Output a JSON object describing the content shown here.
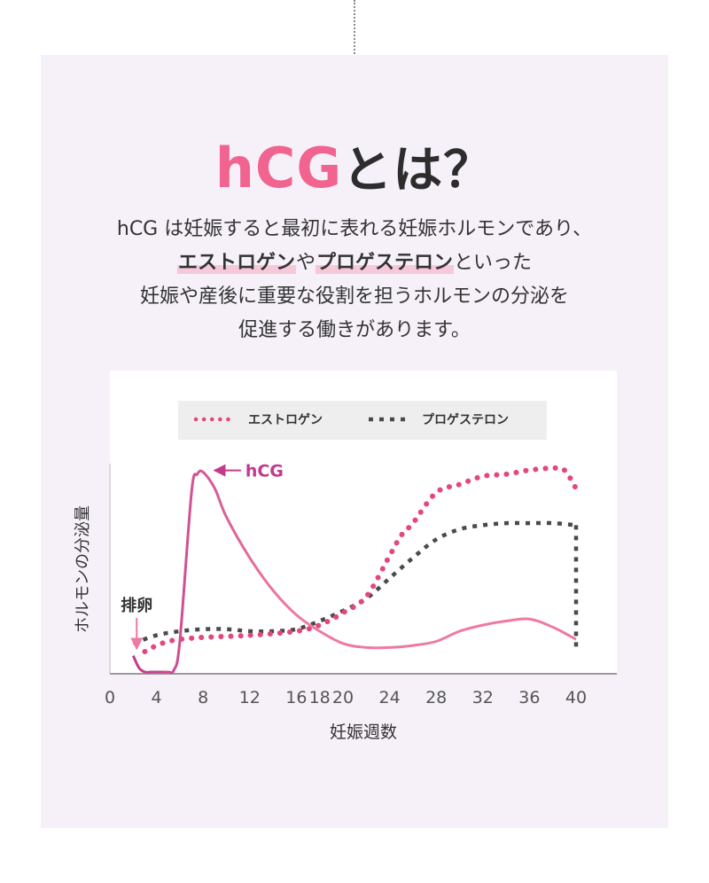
{
  "heading": {
    "accent": "hCG",
    "rest": "とは？"
  },
  "intro": {
    "line1": "hCG は妊娠すると最初に表れる妊娠ホルモンであり、",
    "line2_highlight1": "エストロゲン",
    "line2_mid": "や",
    "line2_highlight2": "プロゲステロン",
    "line2_end": "といった",
    "line3": "妊娠や産後に重要な役割を担うホルモンの分泌を",
    "line4": "促進する働きがあります。"
  },
  "colors": {
    "accent": "#f0648f",
    "hcg": "#c23a8c",
    "estrogen": "#e5467f",
    "progesterone": "#4a4a4a",
    "hcg_tail": "#ef7aa0",
    "panel": "#f6f0f8"
  },
  "chart_data": {
    "type": "line",
    "xlabel": "妊娠週数",
    "ylabel": "ホルモンの分泌量",
    "x_ticks": [
      0,
      4,
      8,
      12,
      16,
      18,
      20,
      24,
      28,
      32,
      36,
      40
    ],
    "xlim": [
      0,
      43
    ],
    "ylim": [
      0,
      100
    ],
    "legend": {
      "placement": "top-center",
      "entries": [
        "エストロゲン",
        "プロゲステロン"
      ]
    },
    "annotations": [
      {
        "text": "hCG",
        "x": 8.2,
        "y": 98
      },
      {
        "text": "排卵",
        "x": 2.3,
        "y": 10
      }
    ],
    "series": [
      {
        "name": "hCG",
        "style": "solid",
        "x": [
          2,
          2.5,
          3,
          3.5,
          4,
          4.5,
          5,
          5.5,
          6,
          7,
          7.5,
          8,
          9,
          10,
          12,
          14,
          16,
          18,
          20,
          22,
          24,
          26,
          28,
          30,
          32,
          34,
          36,
          38,
          40
        ],
        "y": [
          8,
          2,
          0,
          0,
          0,
          0,
          0,
          1,
          15,
          88,
          97,
          98,
          90,
          76,
          56,
          40,
          28,
          20,
          14,
          12,
          12,
          13,
          15,
          20,
          23,
          25,
          26,
          22,
          16
        ]
      },
      {
        "name": "エストロゲン",
        "style": "dotted",
        "x": [
          3,
          4,
          5,
          6,
          8,
          12,
          16,
          18,
          20,
          22,
          24,
          25,
          26,
          28,
          30,
          32,
          34,
          36,
          38,
          39,
          40
        ],
        "y": [
          10,
          13,
          15,
          16,
          17,
          18,
          20,
          23,
          29,
          37,
          57,
          67,
          73,
          88,
          92,
          96,
          97,
          99,
          100,
          99,
          90
        ]
      },
      {
        "name": "プロゲステロン",
        "style": "dashed",
        "x": [
          2,
          4,
          6,
          8,
          10,
          12,
          14,
          16,
          18,
          20,
          22,
          24,
          26,
          28,
          30,
          32,
          34,
          36,
          38,
          40
        ],
        "y": [
          14,
          18,
          20,
          21,
          21,
          20,
          20,
          21,
          25,
          30,
          36,
          46,
          56,
          65,
          70,
          72,
          73,
          73,
          73,
          72
        ]
      }
    ]
  }
}
